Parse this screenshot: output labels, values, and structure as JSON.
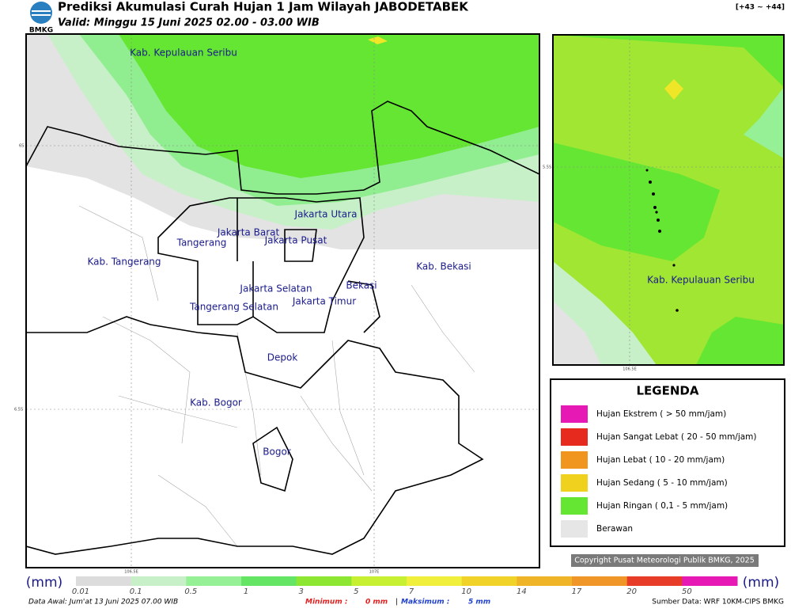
{
  "header": {
    "logo": "BMKG",
    "title": "Prediksi Akumulasi Curah Hujan 1 Jam Wilayah JABODETABEK",
    "subtitle": "Valid: Minggu 15 Juni 2025 02.00 - 03.00 WIB",
    "range": "[+43 ~ +44]"
  },
  "map": {
    "regions": [
      "Kab. Kepulauan Seribu",
      "Jakarta Utara",
      "Jakarta Barat",
      "Jakarta Pusat",
      "Tangerang",
      "Kab. Tangerang",
      "Kab. Bekasi",
      "Jakarta Selatan",
      "Jakarta Timur",
      "Bekasi",
      "Tangerang Selatan",
      "Depok",
      "Kab. Bogor",
      "Bogor"
    ],
    "lat_labels": [
      "6S",
      "6.5S"
    ],
    "lon_labels": [
      "106.5E",
      "107E"
    ]
  },
  "inset": {
    "region": "Kab. Kepulauan Seribu",
    "lat_label": "5.5S",
    "lon_label": "106.5E"
  },
  "legend": {
    "title": "LEGENDA",
    "items": [
      {
        "label": "Hujan Ekstrem ( > 50 mm/jam)",
        "color": "#e619b4"
      },
      {
        "label": "Hujan Sangat Lebat ( 20 - 50 mm/jam)",
        "color": "#e62a1e"
      },
      {
        "label": "Hujan Lebat ( 10 - 20 mm/jam)",
        "color": "#f0961e"
      },
      {
        "label": "Hujan Sedang ( 5 - 10 mm/jam)",
        "color": "#f0d21e"
      },
      {
        "label": "Hujan Ringan ( 0,1 - 5 mm/jam)",
        "color": "#64e632"
      },
      {
        "label": "Berawan",
        "color": "#e6e6e6"
      }
    ]
  },
  "copyright": "Copyright Pusat Meteorologi Publik BMKG, 2025",
  "colorbar": {
    "unit": "(mm)",
    "ticks": [
      0.01,
      0.1,
      0.5,
      1,
      3,
      5,
      7,
      10,
      14,
      17,
      20,
      50
    ],
    "colors": [
      "#dcdcdc",
      "#c8f0c8",
      "#96f096",
      "#64e664",
      "#8ce632",
      "#c8f032",
      "#f0f03c",
      "#f0d228",
      "#f0b428",
      "#f09628",
      "#e63c28",
      "#e619b4"
    ]
  },
  "footer": {
    "data_awal": "Data Awal: Jum'at 13 Juni 2025 07.00 WIB",
    "min_label": "Minimum :",
    "min_value": "0 mm",
    "separator": "|",
    "max_label": "Maksimum :",
    "max_value": "5 mm",
    "source": "Sumber Data: WRF 10KM-CIPS BMKG"
  }
}
